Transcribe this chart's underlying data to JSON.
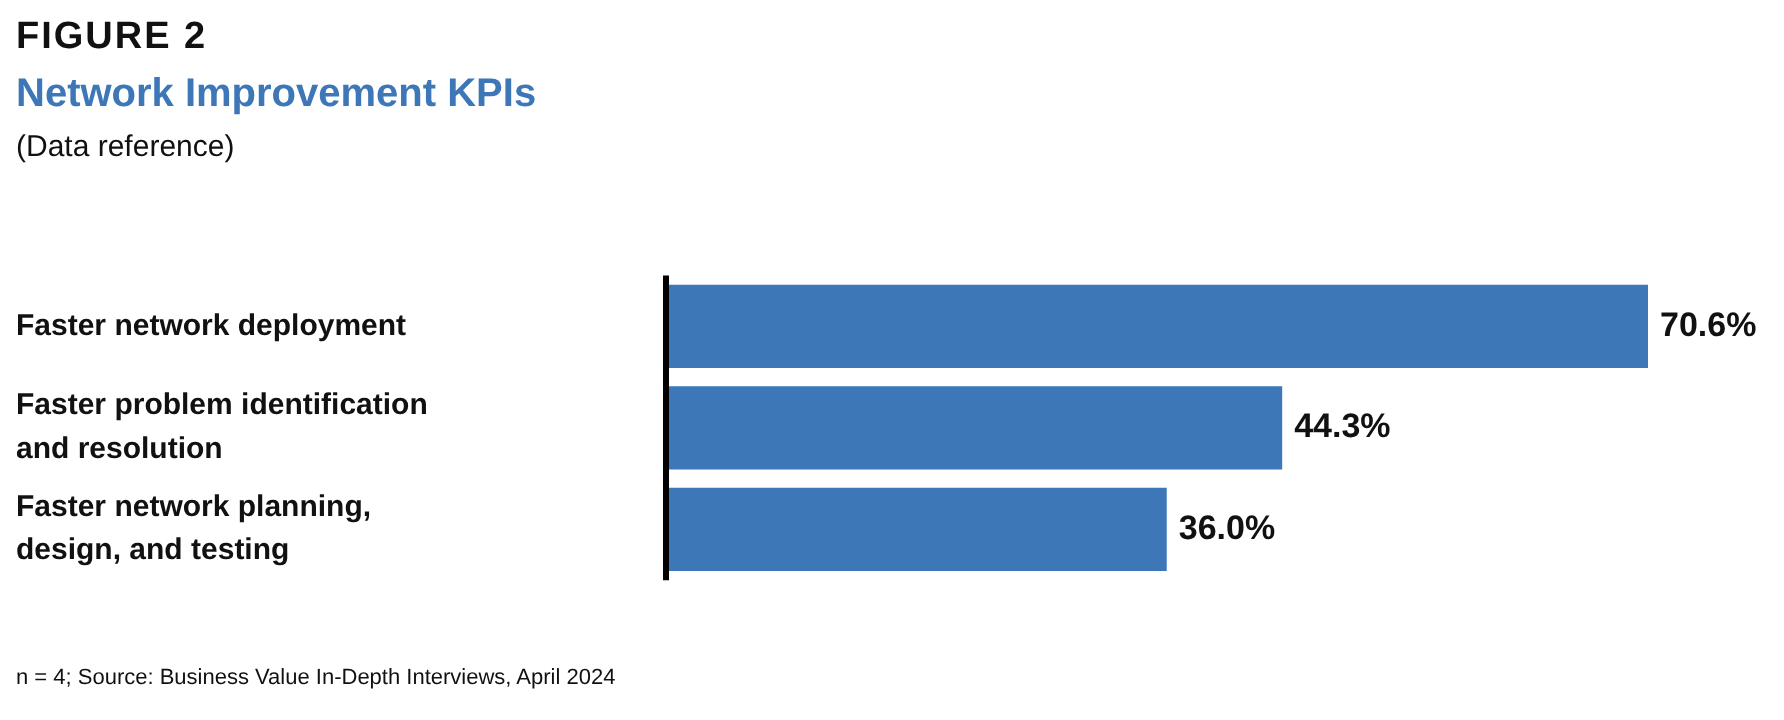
{
  "chart_data": {
    "type": "bar",
    "orientation": "horizontal",
    "title": "Network Improvement KPIs",
    "subtitle": "(Data reference)",
    "annotations": [
      "FIGURE 2",
      "n = 4; Source: Business Value In-Depth Interviews, April 2024"
    ],
    "categories": [
      "Faster network deployment",
      "Faster problem identification and resolution",
      "Faster network planning, design, and testing"
    ],
    "values": [
      70.6,
      44.3,
      36.0
    ],
    "value_labels": [
      "70.6%",
      "44.3%",
      "36.0%"
    ],
    "color": "#3d77b8",
    "grid": false,
    "legend": false
  }
}
